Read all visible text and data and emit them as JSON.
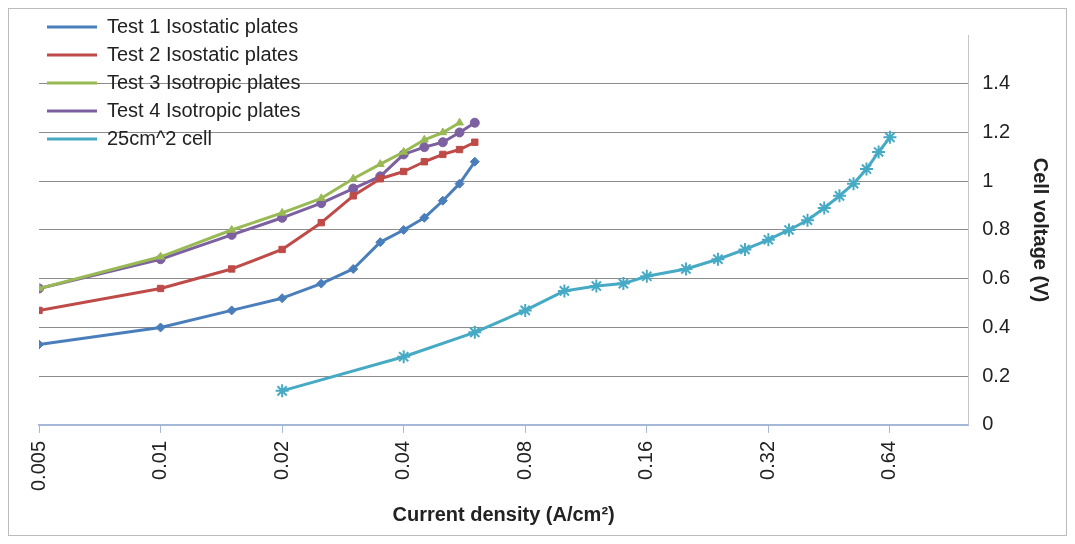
{
  "chart_data": {
    "type": "line",
    "xlabel": "Current density (A/cm²)",
    "ylabel": "Cell voltage (V)",
    "log": "x",
    "xlim": [
      0.005,
      1
    ],
    "xticks": [
      0.005,
      0.01,
      0.02,
      0.04,
      0.08,
      0.16,
      0.32,
      0.64
    ],
    "ylim": [
      0,
      1.6
    ],
    "yticks": [
      0,
      0.2,
      0.4,
      0.6,
      0.8,
      1,
      1.2,
      1.4
    ],
    "grid": "y",
    "legend": "top left",
    "series": [
      {
        "name": "Test 1 Isostatic plates",
        "color": "#4a7ebb",
        "marker": "diamond",
        "x": [
          0.005,
          0.01,
          0.015,
          0.02,
          0.025,
          0.03,
          0.035,
          0.04,
          0.045,
          0.05,
          0.055,
          0.06
        ],
        "values": [
          0.33,
          0.4,
          0.47,
          0.52,
          0.58,
          0.64,
          0.75,
          0.8,
          0.85,
          0.92,
          0.99,
          1.08
        ]
      },
      {
        "name": "Test 2 Isostatic plates",
        "color": "#be4b48",
        "marker": "square",
        "x": [
          0.005,
          0.01,
          0.015,
          0.02,
          0.025,
          0.03,
          0.035,
          0.04,
          0.045,
          0.05,
          0.055,
          0.06
        ],
        "values": [
          0.47,
          0.56,
          0.64,
          0.72,
          0.83,
          0.94,
          1.01,
          1.04,
          1.08,
          1.11,
          1.13,
          1.16
        ]
      },
      {
        "name": "Test 3 Isotropic plates",
        "color": "#98b954",
        "marker": "triangle",
        "x": [
          0.005,
          0.01,
          0.015,
          0.02,
          0.025,
          0.03,
          0.035,
          0.04,
          0.045,
          0.05,
          0.055
        ],
        "values": [
          0.56,
          0.69,
          0.8,
          0.87,
          0.93,
          1.01,
          1.07,
          1.12,
          1.17,
          1.2,
          1.24
        ]
      },
      {
        "name": "Test 4 Isotropic plates",
        "color": "#7d60a0",
        "marker": "circle",
        "x": [
          0.005,
          0.01,
          0.015,
          0.02,
          0.025,
          0.03,
          0.035,
          0.04,
          0.045,
          0.05,
          0.055,
          0.06
        ],
        "values": [
          0.56,
          0.68,
          0.78,
          0.85,
          0.91,
          0.97,
          1.02,
          1.11,
          1.14,
          1.16,
          1.2,
          1.24
        ]
      },
      {
        "name": "25cm^2 cell",
        "color": "#46aac5",
        "marker": "cross",
        "x": [
          0.02,
          0.04,
          0.06,
          0.08,
          0.1,
          0.12,
          0.14,
          0.16,
          0.2,
          0.24,
          0.28,
          0.32,
          0.36,
          0.4,
          0.44,
          0.48,
          0.52,
          0.56,
          0.6,
          0.64
        ],
        "values": [
          0.14,
          0.28,
          0.38,
          0.47,
          0.55,
          0.57,
          0.58,
          0.61,
          0.64,
          0.68,
          0.72,
          0.76,
          0.8,
          0.84,
          0.89,
          0.94,
          0.99,
          1.05,
          1.12,
          1.18
        ]
      }
    ]
  }
}
